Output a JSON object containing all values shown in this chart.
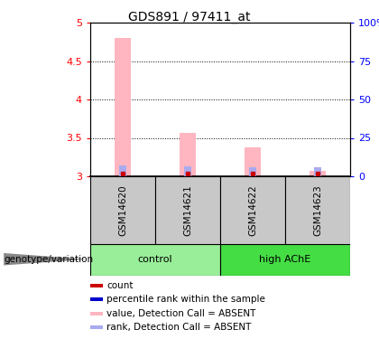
{
  "title": "GDS891 / 97411_at",
  "samples": [
    "GSM14620",
    "GSM14621",
    "GSM14622",
    "GSM14623"
  ],
  "ylim": [
    3.0,
    5.0
  ],
  "yticks": [
    3.0,
    3.5,
    4.0,
    4.5,
    5.0
  ],
  "ytick_labels": [
    "3",
    "3.5",
    "4",
    "4.5",
    "5"
  ],
  "y2tick_labels": [
    "0",
    "25",
    "50",
    "75",
    "100%"
  ],
  "bar_values": [
    4.8,
    3.57,
    3.38,
    3.07
  ],
  "bar_base": 3.0,
  "bar_color_absent": "#FFB6C1",
  "rank_bar_values": [
    3.14,
    3.13,
    3.12,
    3.12
  ],
  "rank_bar_color": "#AAAAEE",
  "count_marker_color": "#CC0000",
  "count_marker_values": [
    3.04,
    3.04,
    3.04,
    3.04
  ],
  "legend_items": [
    {
      "color": "#CC0000",
      "label": "count"
    },
    {
      "color": "#0000CC",
      "label": "percentile rank within the sample"
    },
    {
      "color": "#FFB6C1",
      "label": "value, Detection Call = ABSENT"
    },
    {
      "color": "#AAAAEE",
      "label": "rank, Detection Call = ABSENT"
    }
  ],
  "left_label": "genotype/variation",
  "title_fontsize": 10,
  "group_spans": [
    {
      "name": "control",
      "start": 0,
      "end": 1,
      "color": "#99EE99"
    },
    {
      "name": "high AChE",
      "start": 2,
      "end": 3,
      "color": "#44DD44"
    }
  ],
  "sample_box_color": "#C8C8C8",
  "bar_width": 0.25
}
